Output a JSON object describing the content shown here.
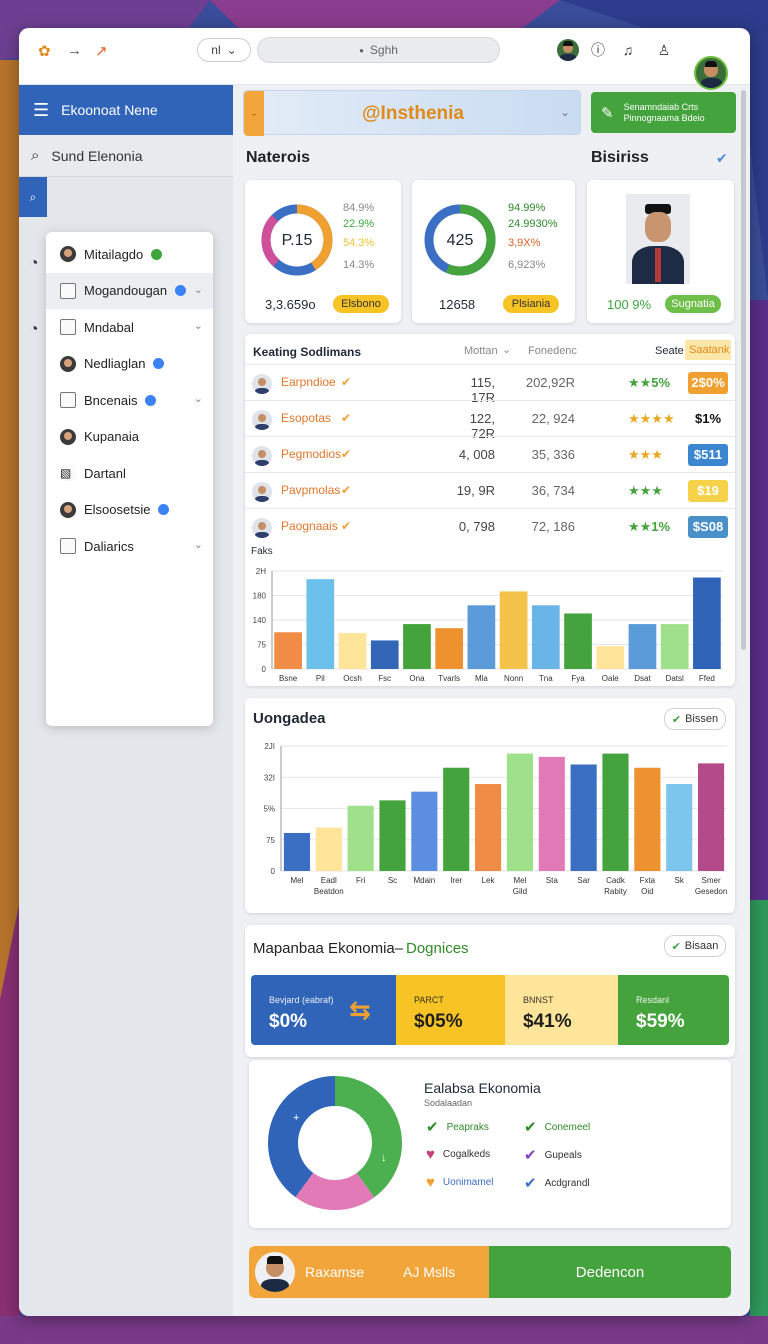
{
  "topbar": {
    "nav_label": "nl",
    "search_text": "Sghh"
  },
  "sidebar": {
    "title": "Ekoonoat Nene",
    "search_label": "Sund Elenonia",
    "items": [
      {
        "label": "Mitailagdo",
        "type": "avatar",
        "badge": "green",
        "chevron": false
      },
      {
        "label": "Mogandougan",
        "type": "box",
        "badge": "blue",
        "chevron": true,
        "selected": true
      },
      {
        "label": "Mndabal",
        "type": "box",
        "badge": "",
        "chevron": true
      },
      {
        "label": "Nedliaglan",
        "type": "avatar",
        "badge": "blue",
        "chevron": false
      },
      {
        "label": "Bncenais",
        "type": "box",
        "badge": "blue",
        "chevron": true
      },
      {
        "label": "Kupanaia",
        "type": "avatar",
        "badge": "",
        "chevron": false
      },
      {
        "label": "Dartanl",
        "type": "image",
        "badge": "",
        "chevron": false
      },
      {
        "label": "Elsoosetsie",
        "type": "avatar",
        "badge": "blue",
        "chevron": false
      },
      {
        "label": "Daliarics",
        "type": "box",
        "badge": "",
        "chevron": true
      }
    ]
  },
  "header": {
    "banner": "@Insthenia",
    "green_button": "Senamndaiab Crts Pinnognaama Bdeio"
  },
  "sections": {
    "left": "Naterois",
    "right": "Bisiriss"
  },
  "cards": {
    "card1": {
      "center": "P.15",
      "legend": [
        "84.9%",
        "22.9%",
        "54.3%",
        "14.3%"
      ],
      "value": "3,3.659o",
      "pill": "Elsbono"
    },
    "card2": {
      "center": "425",
      "legend": [
        "94.99%",
        "24.9930%",
        "3,9X%",
        "6,923%"
      ],
      "value": "12658",
      "pill": "Plsiania"
    },
    "card3": {
      "value": "100 9%",
      "pill": "Sugnatia"
    }
  },
  "table": {
    "title": "Keating Sodlimans",
    "headers": [
      "Mottan",
      "Fonedenc",
      "Seate",
      "Saatank"
    ],
    "rows": [
      {
        "name": "Earpndioe",
        "a": "115, 17R",
        "b": "202,92R",
        "rating": "★★5%",
        "tag": "2$0%",
        "tag_color": "#f0a030"
      },
      {
        "name": "Esopotas",
        "a": "122, 72R",
        "b": "22, 924",
        "rating": "★★★★",
        "tag": "$1%",
        "tag_color": "#ffffff"
      },
      {
        "name": "Pegmodios",
        "a": "4, 008",
        "b": "35, 336",
        "rating": "★★★",
        "tag": "$511",
        "tag_color": "#3a86cf"
      },
      {
        "name": "Pavpmolas",
        "a": "19, 9R",
        "b": "36, 734",
        "rating": "★★★",
        "tag": "$19",
        "tag_color": "#f5d24a"
      },
      {
        "name": "Paognaais",
        "a": "0, 798",
        "b": "72, 186",
        "rating": "★★1%",
        "tag": "$S08",
        "tag_color": "#4a90c8"
      }
    ]
  },
  "chart1": {
    "title": "Faks",
    "yticks": [
      "0",
      "75",
      "140",
      "180",
      "2H"
    ],
    "categories": [
      "Bsne",
      "Pil",
      "Ocsh",
      "Fsc",
      "Ona",
      "Tvarls",
      "Mla",
      "Nonn",
      "Tna",
      "Fya",
      "Oale",
      "Dsat",
      "Datsl",
      "Ffed"
    ],
    "values": [
      45,
      110,
      44,
      35,
      55,
      50,
      78,
      95,
      78,
      68,
      28,
      55,
      55,
      112
    ],
    "colors": [
      "#f08c45",
      "#6cc1ec",
      "#ffe59a",
      "#3466b8",
      "#45a33d",
      "#ee9230",
      "#5b9bd9",
      "#f6c34a",
      "#6bb4e8",
      "#45a33d",
      "#ffe59a",
      "#5b9bd9",
      "#9fe08a",
      "#2f64b8"
    ],
    "ymax": 120
  },
  "chart2": {
    "title": "Uongadea",
    "button": "Bissen",
    "yticks": [
      "0",
      "75",
      "5%",
      "32I",
      "2JI"
    ],
    "categories": [
      "Mel",
      "Eadl",
      "Fri",
      "Sc",
      "Mdain",
      "Irer",
      "Lek",
      "Mel",
      "Sta",
      "Sar",
      "Cadk",
      "Fxta",
      "Sk",
      "Smer"
    ],
    "sublabels": [
      "",
      "Beatdon",
      "",
      "",
      "",
      "",
      "",
      "Gild",
      "",
      "",
      "Rabity",
      "Oid",
      "",
      "Gesedon"
    ],
    "values": [
      35,
      40,
      60,
      65,
      73,
      95,
      80,
      108,
      105,
      98,
      108,
      95,
      80,
      99
    ],
    "colors": [
      "#3a6fc4",
      "#ffe59a",
      "#9fe08a",
      "#45a33d",
      "#5b8de0",
      "#45a33d",
      "#f08c45",
      "#9fe08a",
      "#e27ab8",
      "#3a6fc4",
      "#45a33d",
      "#ee9230",
      "#7cc6ee",
      "#b54a8a"
    ],
    "ymax": 115
  },
  "economy": {
    "title": "Mapanbaa Ekonomia–",
    "subtitle": "Dognices",
    "button": "Bisaan",
    "kpis": [
      {
        "label": "Bevjard (eabraf)",
        "value": "$0%",
        "bg": "#2f64b8",
        "fg": "#ffffff"
      },
      {
        "label": "PARCT",
        "value": "$05%",
        "bg": "#f7c325",
        "fg": "#1f1f1f"
      },
      {
        "label": "BNNST",
        "value": "$41%",
        "bg": "#ffe59a",
        "fg": "#1f1f1f"
      },
      {
        "label": "Resdanl",
        "value": "$59%",
        "bg": "#45a33d",
        "fg": "#ffffff"
      }
    ]
  },
  "evaluation": {
    "title": "Ealabsa Ekonomia",
    "subtitle": "Sodalaadan",
    "items": [
      {
        "label": "Peapraks",
        "mark": "✔",
        "color": "#2f8a2a"
      },
      {
        "label": "Conemeel",
        "mark": "✔",
        "color": "#2f8a2a"
      },
      {
        "label": "Cogalkeds",
        "mark": "♥",
        "color": "#c2407a"
      },
      {
        "label": "Gupeals",
        "mark": "✔",
        "color": "#7f3fbf"
      },
      {
        "label": "Uonimamel",
        "mark": "♥",
        "color": "#f0a030"
      },
      {
        "label": "Acdgrandl",
        "mark": "✔",
        "color": "#3a6fc4"
      }
    ],
    "donut": [
      {
        "value": 40,
        "color": "#4caf50"
      },
      {
        "value": 20,
        "color": "#e27ab8"
      },
      {
        "value": 40,
        "color": "#2f64b8"
      }
    ]
  },
  "footer": {
    "left": "Raxamse",
    "middle": "AJ Mslls",
    "right": "Dedencon"
  }
}
